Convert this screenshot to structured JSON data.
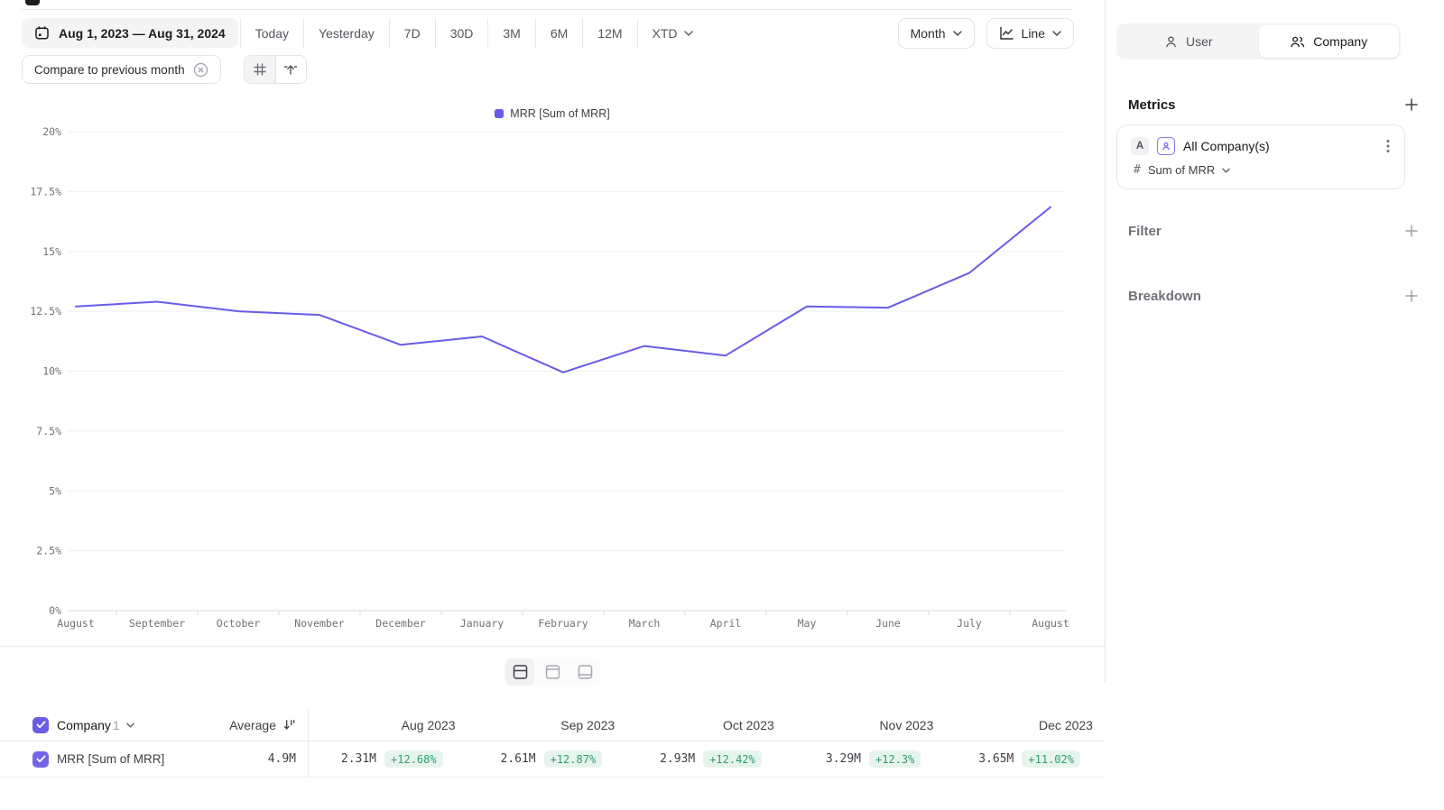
{
  "toolbar": {
    "date_range": "Aug 1, 2023 — Aug 31, 2024",
    "presets": [
      "Today",
      "Yesterday",
      "7D",
      "30D",
      "3M",
      "6M",
      "12M"
    ],
    "xtd_label": "XTD",
    "granularity": "Month",
    "chart_type": "Line",
    "compare_chip": "Compare to previous month"
  },
  "sidebar": {
    "tabs": {
      "user": "User",
      "company": "Company",
      "active": "Company"
    },
    "metrics_title": "Metrics",
    "metric_card": {
      "badge": "A",
      "name": "All Company(s)",
      "agg_prefix": "#",
      "aggregation": "Sum of MRR"
    },
    "filter_title": "Filter",
    "breakdown_title": "Breakdown"
  },
  "chart_data": {
    "type": "line",
    "legend": "MRR [Sum of MRR]",
    "x": [
      "August",
      "September",
      "October",
      "November",
      "December",
      "January",
      "February",
      "March",
      "April",
      "May",
      "June",
      "July",
      "August"
    ],
    "series": [
      {
        "name": "MRR [Sum of MRR]",
        "color": "#695BEB",
        "values": [
          12.7,
          12.9,
          12.5,
          12.35,
          11.1,
          11.45,
          9.95,
          11.05,
          10.65,
          12.7,
          12.65,
          14.1,
          16.85
        ]
      }
    ],
    "ylim": [
      0,
      20
    ],
    "yticks": [
      "0%",
      "2.5%",
      "5%",
      "7.5%",
      "10%",
      "12.5%",
      "15%",
      "17.5%",
      "20%"
    ],
    "grid": true,
    "legend_position": "top",
    "unit": "%"
  },
  "table": {
    "group_label": "Company",
    "group_count": "1",
    "average_label": "Average",
    "columns": [
      "Aug 2023",
      "Sep 2023",
      "Oct 2023",
      "Nov 2023",
      "Dec 2023"
    ],
    "rows": [
      {
        "name": "MRR [Sum of MRR]",
        "average": "4.9M",
        "cells": [
          {
            "value": "2.31M",
            "delta": "+12.68%"
          },
          {
            "value": "2.61M",
            "delta": "+12.87%"
          },
          {
            "value": "2.93M",
            "delta": "+12.42%"
          },
          {
            "value": "3.29M",
            "delta": "+12.3%"
          },
          {
            "value": "3.65M",
            "delta": "+11.02%"
          }
        ]
      }
    ]
  },
  "colors": {
    "accent": "#695BEB",
    "positive": "#2E9E74",
    "positive_bg": "#E7F4EE",
    "grid_line": "#F1F1F3",
    "axis_line": "#DBDBDF",
    "tick_text": "#71717A"
  }
}
